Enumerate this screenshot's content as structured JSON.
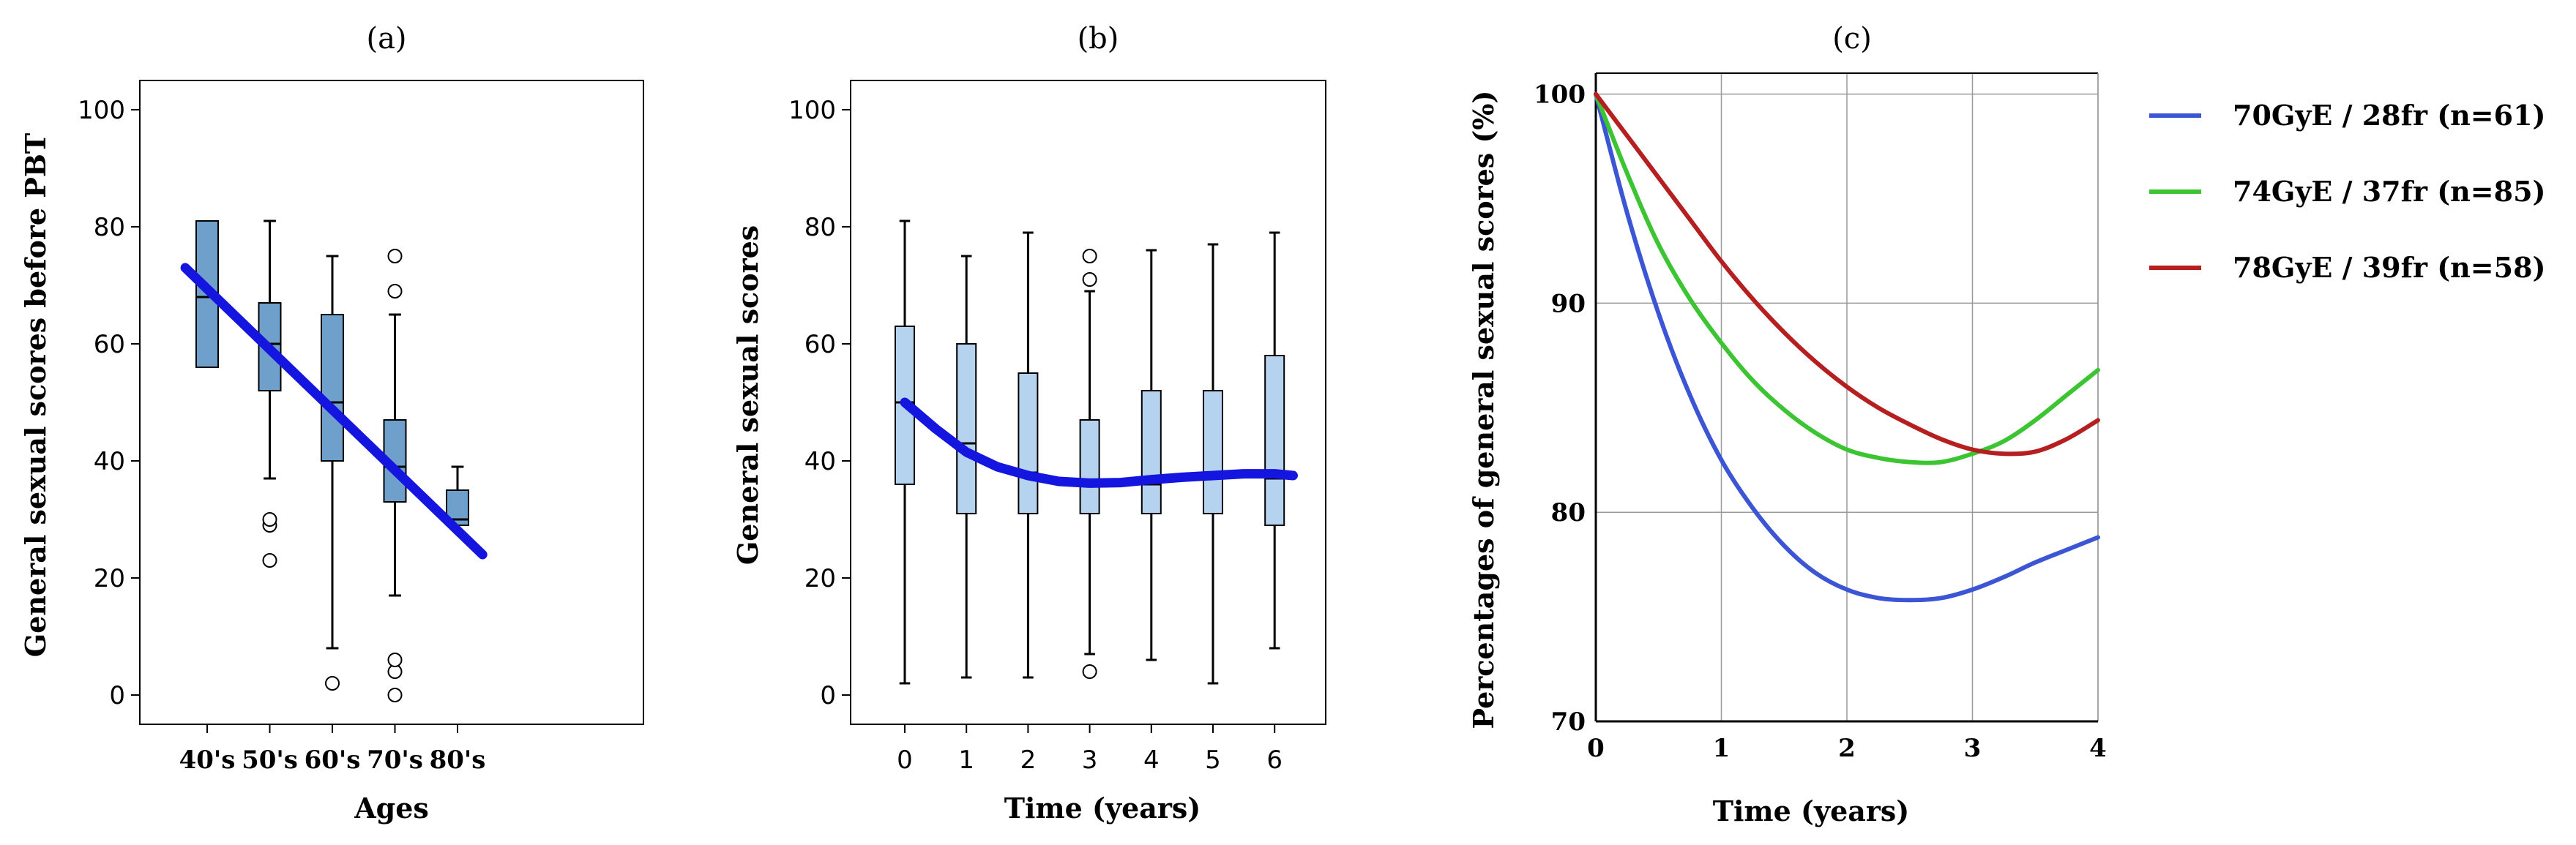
{
  "chart_data": [
    {
      "id": "a",
      "type": "box",
      "title": "(a)",
      "xlabel": "Ages",
      "ylabel": "General sexual scores before PBT",
      "categories": [
        "40's",
        "50's",
        "60's",
        "70's",
        "80's"
      ],
      "yticks": [
        "0",
        "20",
        "40",
        "60",
        "80",
        "100"
      ],
      "ylim": [
        -5,
        105
      ],
      "boxes": [
        {
          "cat": "40's",
          "min": 56,
          "q1": 56,
          "median": 68,
          "q3": 81,
          "max": 81,
          "outliers": []
        },
        {
          "cat": "50's",
          "min": 37,
          "q1": 52,
          "median": 60,
          "q3": 67,
          "max": 81,
          "outliers": [
            23,
            29,
            30
          ]
        },
        {
          "cat": "60's",
          "min": 8,
          "q1": 40,
          "median": 50,
          "q3": 65,
          "max": 75,
          "outliers": [
            2
          ]
        },
        {
          "cat": "70's",
          "min": 17,
          "q1": 33,
          "median": 39,
          "q3": 47,
          "max": 65,
          "outliers": [
            0,
            4,
            6,
            69,
            75
          ]
        },
        {
          "cat": "80's",
          "min": 29,
          "q1": 29,
          "median": 30,
          "q3": 35,
          "max": 39,
          "outliers": []
        }
      ],
      "trend": {
        "type": "line",
        "x": [
          -0.35,
          4.4
        ],
        "y": [
          73,
          24
        ],
        "color": "#1515e0"
      }
    },
    {
      "id": "b",
      "type": "box",
      "title": "(b)",
      "xlabel": "Time (years)",
      "ylabel": "General sexual scores",
      "categories": [
        "0",
        "1",
        "2",
        "3",
        "4",
        "5",
        "6"
      ],
      "yticks": [
        "0",
        "20",
        "40",
        "60",
        "80",
        "100"
      ],
      "ylim": [
        -5,
        105
      ],
      "boxes": [
        {
          "cat": "0",
          "min": 2,
          "q1": 36,
          "median": 50,
          "q3": 63,
          "max": 81,
          "outliers": []
        },
        {
          "cat": "1",
          "min": 3,
          "q1": 31,
          "median": 43,
          "q3": 60,
          "max": 75,
          "outliers": []
        },
        {
          "cat": "2",
          "min": 3,
          "q1": 31,
          "median": 38,
          "q3": 55,
          "max": 79,
          "outliers": []
        },
        {
          "cat": "3",
          "min": 7,
          "q1": 31,
          "median": 36,
          "q3": 47,
          "max": 69,
          "outliers": [
            4,
            71,
            75
          ]
        },
        {
          "cat": "4",
          "min": 6,
          "q1": 31,
          "median": 36,
          "q3": 52,
          "max": 76,
          "outliers": []
        },
        {
          "cat": "5",
          "min": 2,
          "q1": 31,
          "median": 37,
          "q3": 52,
          "max": 77,
          "outliers": []
        },
        {
          "cat": "6",
          "min": 8,
          "q1": 29,
          "median": 37,
          "q3": 58,
          "max": 79,
          "outliers": []
        }
      ],
      "trend": {
        "type": "line",
        "x": [
          0,
          0.5,
          1,
          1.5,
          2,
          2.5,
          3,
          3.5,
          4,
          4.5,
          5,
          5.5,
          6,
          6.3
        ],
        "y": [
          50,
          45.5,
          41.5,
          39,
          37.5,
          36.5,
          36.2,
          36.3,
          36.8,
          37.2,
          37.5,
          37.8,
          37.8,
          37.5
        ],
        "color": "#1515e0"
      }
    },
    {
      "id": "c",
      "type": "line",
      "title": "(c)",
      "xlabel": "Time (years)",
      "ylabel": "Percentages of general sexual scores (%)",
      "xticks": [
        "0",
        "1",
        "2",
        "3",
        "4"
      ],
      "yticks": [
        "70",
        "80",
        "90",
        "100"
      ],
      "xlim": [
        0,
        4
      ],
      "ylim": [
        70,
        101
      ],
      "grid": true,
      "legend_position": "right",
      "series": [
        {
          "name": "70GyE / 28fr (n=61)",
          "color": "#3b55d4",
          "x": [
            0,
            0.25,
            0.5,
            0.75,
            1,
            1.25,
            1.5,
            1.75,
            2,
            2.25,
            2.5,
            2.75,
            3,
            3.25,
            3.5,
            3.75,
            4
          ],
          "y": [
            100,
            94.3,
            89.5,
            85.6,
            82.5,
            80.2,
            78.4,
            77.1,
            76.3,
            75.9,
            75.8,
            75.9,
            76.3,
            76.9,
            77.6,
            78.2,
            78.8
          ]
        },
        {
          "name": "74GyE / 37fr (n=85)",
          "color": "#3cc433",
          "x": [
            0,
            0.25,
            0.5,
            0.75,
            1,
            1.25,
            1.5,
            1.75,
            2,
            2.25,
            2.5,
            2.75,
            3,
            3.25,
            3.5,
            3.75,
            4
          ],
          "y": [
            100,
            96.2,
            92.8,
            90.2,
            88.1,
            86.3,
            84.9,
            83.8,
            83.0,
            82.6,
            82.4,
            82.4,
            82.8,
            83.4,
            84.4,
            85.6,
            86.8
          ]
        },
        {
          "name": "78GyE / 39fr (n=58)",
          "color": "#b51f1f",
          "x": [
            0,
            0.25,
            0.5,
            0.75,
            1,
            1.25,
            1.5,
            1.75,
            2,
            2.25,
            2.5,
            2.75,
            3,
            3.25,
            3.5,
            3.75,
            4
          ],
          "y": [
            100,
            98.0,
            96.0,
            94.0,
            92.0,
            90.2,
            88.6,
            87.2,
            86.0,
            85.0,
            84.2,
            83.5,
            83.0,
            82.8,
            82.9,
            83.5,
            84.4
          ]
        }
      ]
    }
  ]
}
